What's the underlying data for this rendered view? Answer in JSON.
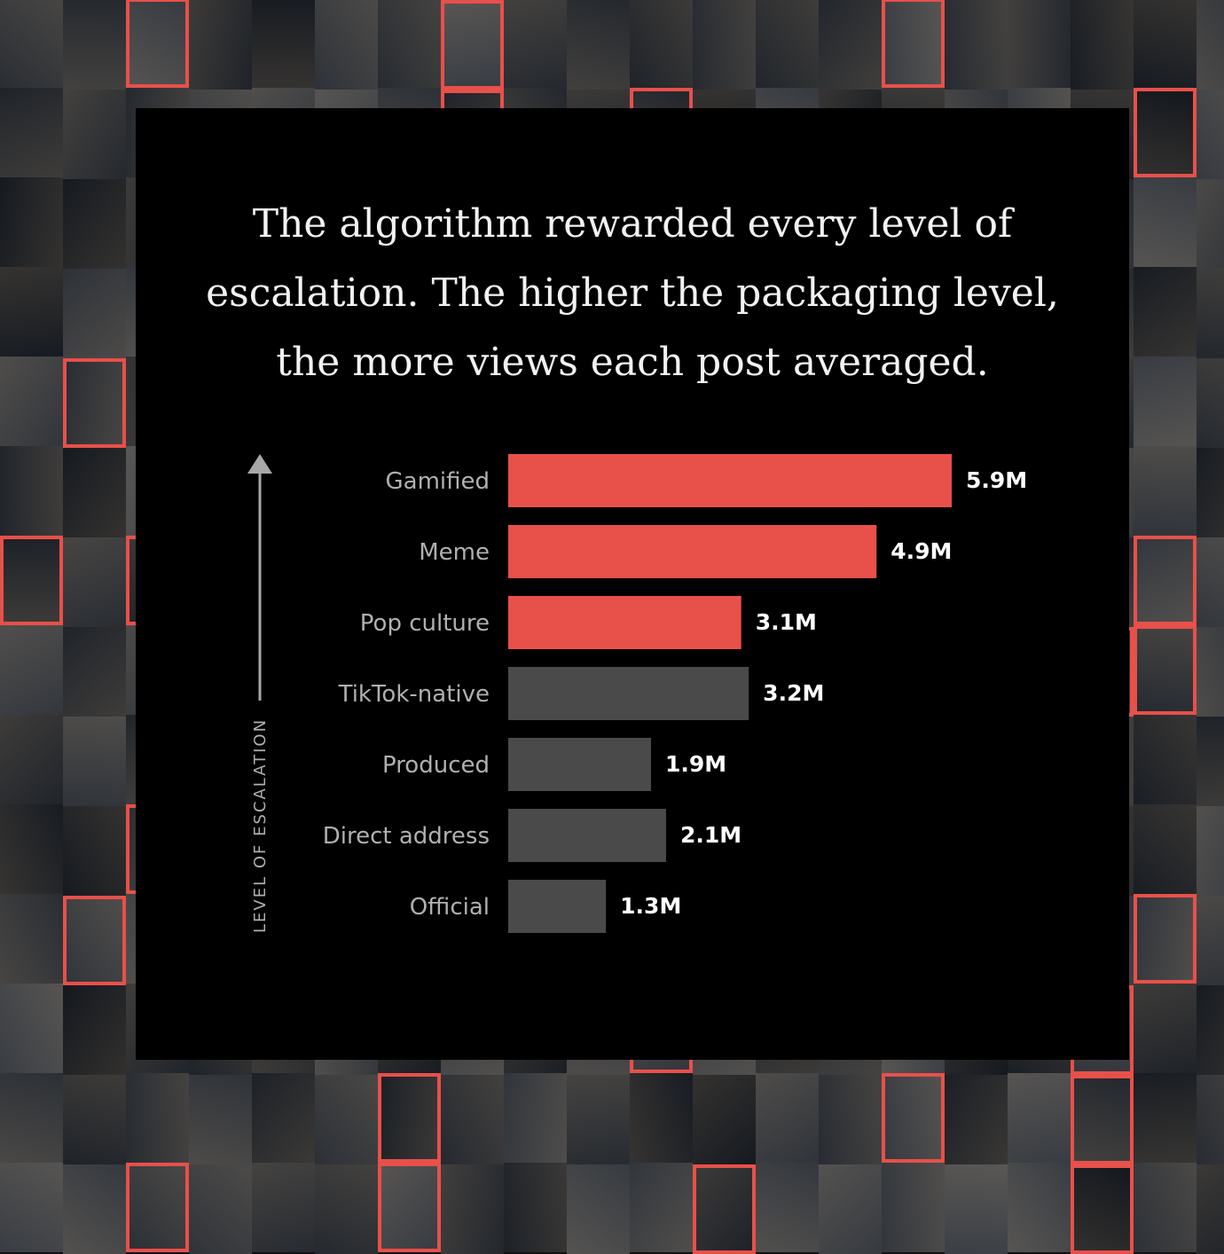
{
  "chart_data": {
    "type": "bar",
    "orientation": "horizontal",
    "title": "The algorithm rewarded every level of escalation. The higher the packaging level, the more views each post averaged.",
    "ylabel": "LEVEL OF ESCALATION",
    "categories": [
      "Gamified",
      "Meme",
      "Pop culture",
      "TikTok-native",
      "Produced",
      "Direct address",
      "Official"
    ],
    "values": [
      5.9,
      4.9,
      3.1,
      3.2,
      1.9,
      2.1,
      1.3
    ],
    "value_labels": [
      "5.9M",
      "4.9M",
      "3.1M",
      "3.2M",
      "1.9M",
      "2.1M",
      "1.3M"
    ],
    "highlighted": [
      true,
      true,
      true,
      false,
      false,
      false,
      false
    ],
    "unit": "M views",
    "xlim": [
      0,
      5.9
    ],
    "grid": false,
    "colors": {
      "highlight": "#e8504a",
      "default": "#4a4a4a",
      "background": "#000000",
      "tile_border": "#e8504a"
    }
  }
}
